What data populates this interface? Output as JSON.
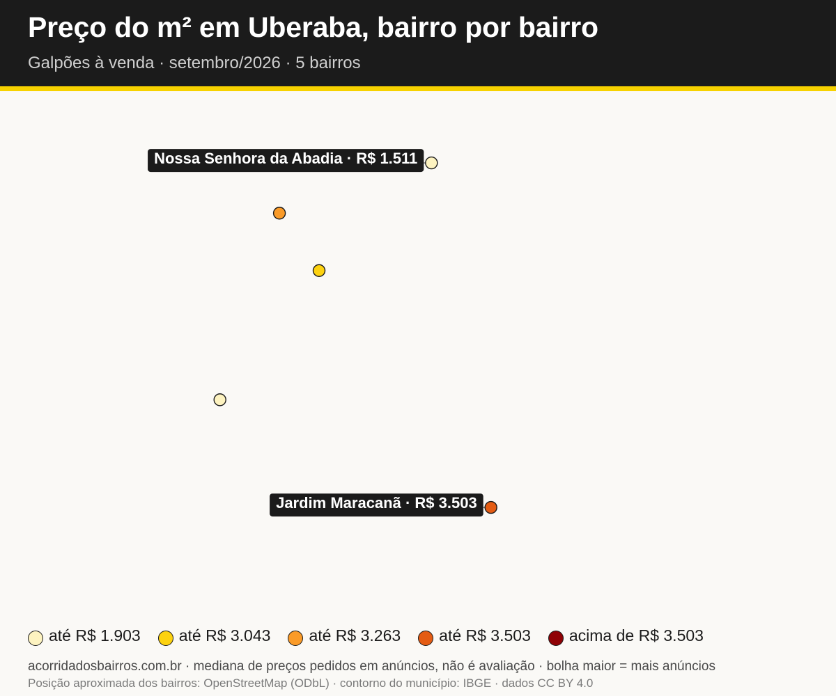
{
  "header": {
    "title": "Preço do m² em Uberaba, bairro por bairro",
    "subtitle": "Galpões à venda · setembro/2026 · 5 bairros"
  },
  "colors": {
    "header_bg": "#1b1b1b",
    "accent": "#f7d200",
    "callout_bg": "#1b1b1b"
  },
  "legend": [
    {
      "label": "até R$ 1.903",
      "color": "#fdf3c0"
    },
    {
      "label": "até R$ 3.043",
      "color": "#fdd20f"
    },
    {
      "label": "até R$ 3.263",
      "color": "#fa9b28"
    },
    {
      "label": "até R$ 3.503",
      "color": "#e45c13"
    },
    {
      "label": "acima de R$ 3.503",
      "color": "#8f0205"
    }
  ],
  "neighborhoods": [
    {
      "name": "Nossa Senhora da Abadia",
      "label": "Nossa Senhora da Abadia · R$ 1.511",
      "color": "#fdf3c0",
      "lat": -19.731,
      "lon": -47.924,
      "labeled": true
    },
    {
      "name": "",
      "label": "",
      "color": "#fa9b28",
      "lat": -19.738,
      "lon": -47.947,
      "labeled": false
    },
    {
      "name": "",
      "label": "",
      "color": "#fdd20f",
      "lat": -19.746,
      "lon": -47.941,
      "labeled": false
    },
    {
      "name": "",
      "label": "",
      "color": "#fdf3c0",
      "lat": -19.764,
      "lon": -47.956,
      "labeled": false
    },
    {
      "name": "Jardim Maracanã",
      "label": "Jardim Maracanã · R$ 3.503",
      "color": "#e45c13",
      "lat": -19.779,
      "lon": -47.915,
      "labeled": true
    }
  ],
  "footer": {
    "line1": "acorridadosbairros.com.br · mediana de preços pedidos em anúncios, não é avaliação · bolha maior = mais anúncios",
    "line2": "Posição aproximada dos bairros: OpenStreetMap (ODbL) · contorno do município: IBGE · dados CC BY 4.0"
  }
}
